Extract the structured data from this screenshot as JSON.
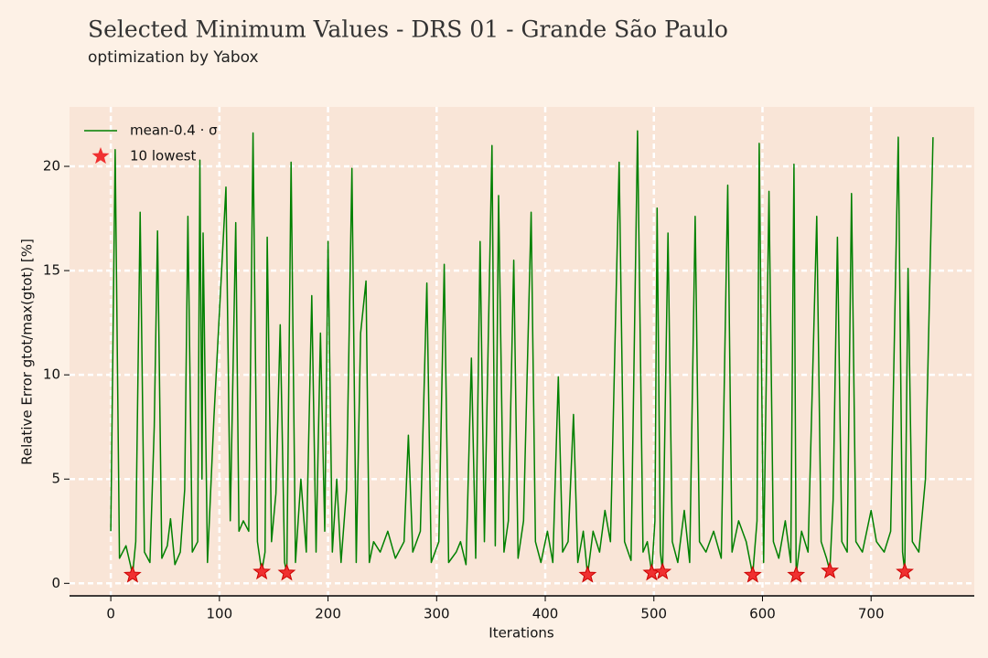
{
  "chart_data": {
    "type": "line",
    "title": "Selected Minimum Values - DRS 01 - Grande São Paulo",
    "subtitle": "optimization by Yabox",
    "xlabel": "Iterations",
    "ylabel": "Relative Error gtot/max(gtot) [%]",
    "xlim": [
      -38,
      795
    ],
    "xticks": [
      0,
      100,
      200,
      300,
      400,
      500,
      600,
      700
    ],
    "ylim": [
      -0.6,
      22.85
    ],
    "yticks": [
      0,
      5,
      10,
      15,
      20
    ],
    "grid": true,
    "legend": "upper left",
    "series": [
      {
        "name": "mean-0.4 · σ",
        "type": "line",
        "color": "#008000",
        "x": [
          0,
          4,
          8,
          14,
          18,
          20,
          23,
          27,
          31,
          36,
          40,
          43,
          47,
          52,
          55,
          59,
          64,
          68,
          71,
          75,
          80,
          82,
          84,
          85,
          89,
          95,
          106,
          110,
          115,
          118,
          122,
          127,
          131,
          135,
          139,
          142,
          144,
          148,
          152,
          156,
          160,
          162,
          166,
          170,
          175,
          180,
          185,
          189,
          193,
          197,
          200,
          204,
          208,
          212,
          217,
          222,
          226,
          230,
          235,
          238,
          242,
          248,
          255,
          262,
          270,
          274,
          278,
          285,
          291,
          295,
          302,
          307,
          311,
          318,
          322,
          327,
          332,
          336,
          340,
          344,
          351,
          354,
          357,
          362,
          366,
          371,
          375,
          380,
          387,
          391,
          396,
          402,
          407,
          412,
          416,
          421,
          426,
          430,
          435,
          439,
          444,
          450,
          455,
          460,
          468,
          473,
          479,
          485,
          490,
          494,
          498,
          501,
          503,
          506,
          508,
          513,
          517,
          522,
          528,
          533,
          538,
          542,
          548,
          555,
          562,
          568,
          572,
          578,
          585,
          591,
          595,
          597,
          601,
          606,
          610,
          615,
          621,
          626,
          629,
          631,
          636,
          642,
          650,
          654,
          659,
          662,
          665,
          669,
          673,
          678,
          682,
          686,
          692,
          700,
          705,
          712,
          718,
          725,
          729,
          731,
          734,
          738,
          744,
          750,
          757
        ],
        "values": [
          2.5,
          20.8,
          1.2,
          1.8,
          0.9,
          0.4,
          2,
          17.8,
          1.5,
          1,
          7.5,
          16.9,
          1.2,
          1.8,
          3.1,
          0.9,
          1.5,
          4.5,
          17.6,
          1.5,
          2,
          20.3,
          5,
          16.8,
          1,
          8,
          19.0,
          3,
          17.3,
          2.5,
          3,
          2.5,
          21.6,
          2,
          0.55,
          1.5,
          16.6,
          2,
          4.3,
          12.4,
          1,
          0.5,
          20.2,
          1,
          5,
          1.5,
          13.8,
          1.5,
          12,
          2.5,
          16.4,
          1.5,
          5,
          1,
          4.5,
          19.9,
          1,
          12,
          14.5,
          1,
          2,
          1.5,
          2.5,
          1.2,
          2,
          7.1,
          1.5,
          2.5,
          14.4,
          1,
          2,
          15.3,
          1,
          1.5,
          2,
          0.9,
          10.8,
          1.2,
          16.4,
          2,
          21.0,
          1.8,
          18.6,
          1.5,
          3,
          15.5,
          1.2,
          3,
          17.8,
          2,
          1,
          2.5,
          1,
          9.9,
          1.5,
          2,
          8.1,
          1,
          2.5,
          0.4,
          2.5,
          1.5,
          3.5,
          2,
          20.2,
          2,
          1.1,
          21.7,
          1.5,
          2,
          0.5,
          3,
          18.0,
          1.5,
          0.55,
          16.8,
          2,
          1,
          3.5,
          1,
          17.6,
          2,
          1.5,
          2.5,
          1.2,
          19.1,
          1.5,
          3,
          2,
          0.4,
          3,
          21.1,
          1,
          18.8,
          2,
          1.2,
          3,
          1,
          20.1,
          0.4,
          2.5,
          1.5,
          17.6,
          2,
          1.2,
          0.6,
          4,
          16.6,
          2,
          1.5,
          18.7,
          2,
          1.5,
          3.5,
          2,
          1.5,
          2.5,
          21.4,
          1.5,
          0.55,
          15.1,
          2,
          1.5,
          5,
          21.4
        ]
      },
      {
        "name": "10 lowest",
        "type": "scatter",
        "color": "#f03030",
        "x": [
          20,
          139,
          162,
          439,
          498,
          508,
          591,
          631,
          662,
          731
        ],
        "values": [
          0.4,
          0.55,
          0.5,
          0.4,
          0.5,
          0.55,
          0.4,
          0.4,
          0.6,
          0.55
        ]
      }
    ]
  }
}
